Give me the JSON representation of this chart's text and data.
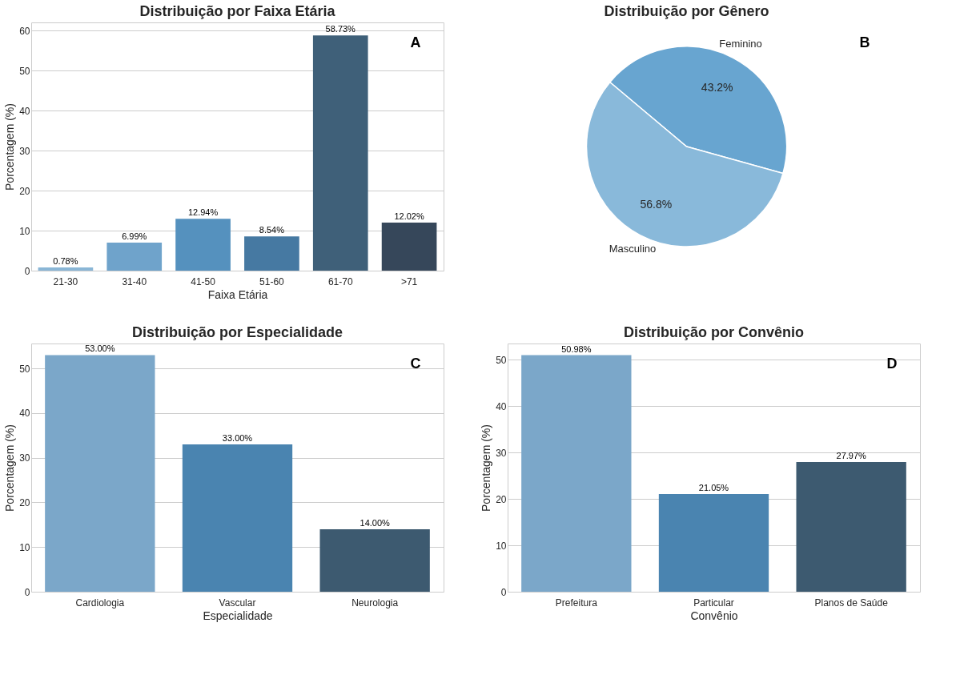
{
  "chart_data": [
    {
      "type": "bar",
      "title": "Distribuição por Faixa Etária",
      "xlabel": "Faixa Etária",
      "ylabel": "Porcentagem (%)",
      "categories": [
        "21-30",
        "31-40",
        "41-50",
        "51-60",
        "61-70",
        ">71"
      ],
      "values": [
        0.78,
        6.99,
        12.94,
        8.54,
        58.73,
        12.02
      ],
      "colors": [
        "#8ab6d6",
        "#6fa3cb",
        "#5591be",
        "#4679a2",
        "#3f6079",
        "#36475a"
      ],
      "value_labels": [
        "0.78%",
        "6.99%",
        "12.94%",
        "8.54%",
        "58.73%",
        "12.02%"
      ],
      "ylim": [
        0,
        62
      ],
      "yticks": [
        0,
        10,
        20,
        30,
        40,
        50,
        60
      ],
      "grid": "y",
      "annotations": [
        "A"
      ]
    },
    {
      "type": "pie",
      "title": "Distribuição por Gênero",
      "categories": [
        "Feminino",
        "Masculino"
      ],
      "values": [
        43.2,
        56.8
      ],
      "colors": [
        "#68a5d0",
        "#89b9da"
      ],
      "value_labels": [
        "43.2%",
        "56.8%"
      ],
      "annotations": [
        "B"
      ]
    },
    {
      "type": "bar",
      "title": "Distribuição por Especialidade",
      "xlabel": "Especialidade",
      "ylabel": "Porcentagem (%)",
      "categories": [
        "Cardiologia",
        "Vascular",
        "Neurologia"
      ],
      "values": [
        53.0,
        33.0,
        14.0
      ],
      "colors": [
        "#7ba7c9",
        "#4a84b0",
        "#3d5a70"
      ],
      "value_labels": [
        "53.00%",
        "33.00%",
        "14.00%"
      ],
      "ylim": [
        0,
        55.6
      ],
      "yticks": [
        0,
        10,
        20,
        30,
        40,
        50
      ],
      "grid": "y",
      "annotations": [
        "C"
      ]
    },
    {
      "type": "bar",
      "title": "Distribuição por Convênio",
      "xlabel": "Convênio",
      "ylabel": "Porcentagem (%)",
      "categories": [
        "Prefeitura",
        "Particular",
        "Planos de Saúde"
      ],
      "values": [
        50.98,
        21.05,
        27.97
      ],
      "colors": [
        "#7ba7c9",
        "#4a84b0",
        "#3d5a70"
      ],
      "value_labels": [
        "50.98%",
        "21.05%",
        "27.97%"
      ],
      "ylim": [
        0,
        53.5
      ],
      "yticks": [
        0,
        10,
        20,
        30,
        40,
        50
      ],
      "grid": "y",
      "annotations": [
        "D"
      ]
    }
  ]
}
